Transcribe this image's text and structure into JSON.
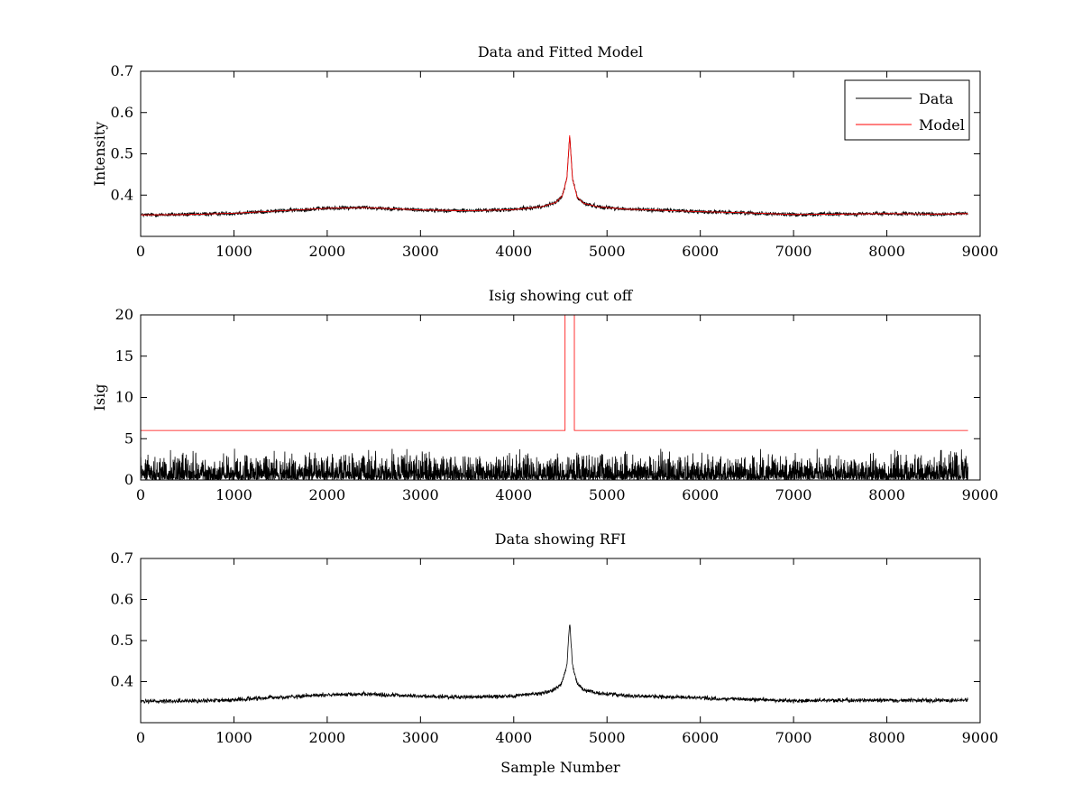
{
  "chart_data": [
    {
      "type": "line",
      "title": "Data and Fitted Model",
      "xlabel": "",
      "ylabel": "Intensity",
      "xlim": [
        0,
        9000
      ],
      "ylim": [
        0.3,
        0.7
      ],
      "xticks": [
        "0",
        "1000",
        "2000",
        "3000",
        "4000",
        "5000",
        "6000",
        "7000",
        "8000",
        "9000"
      ],
      "yticks": [
        "0.4",
        "0.5",
        "0.6",
        "0.7"
      ],
      "legend_position": "top-right",
      "series": [
        {
          "name": "Data",
          "color": "#000000",
          "x": [
            0,
            500,
            1000,
            1500,
            2000,
            2400,
            3000,
            3500,
            4000,
            4300,
            4450,
            4520,
            4570,
            4600,
            4630,
            4680,
            4750,
            4900,
            5200,
            5500,
            6000,
            6500,
            7000,
            7500,
            8000,
            8500,
            8870
          ],
          "values": [
            0.352,
            0.353,
            0.356,
            0.362,
            0.368,
            0.37,
            0.364,
            0.362,
            0.365,
            0.372,
            0.382,
            0.398,
            0.44,
            0.545,
            0.44,
            0.395,
            0.38,
            0.372,
            0.366,
            0.364,
            0.36,
            0.357,
            0.353,
            0.354,
            0.355,
            0.354,
            0.355
          ],
          "noise_amplitude": 0.005
        },
        {
          "name": "Model",
          "color": "#ff0000",
          "x": [
            0,
            500,
            1000,
            1500,
            2000,
            2400,
            3000,
            3500,
            4000,
            4300,
            4450,
            4520,
            4570,
            4600,
            4630,
            4680,
            4750,
            4900,
            5200,
            5500,
            6000,
            6500,
            7000,
            7500,
            8000,
            8500,
            8870
          ],
          "values": [
            0.352,
            0.353,
            0.356,
            0.362,
            0.368,
            0.37,
            0.364,
            0.362,
            0.365,
            0.372,
            0.382,
            0.398,
            0.44,
            0.545,
            0.44,
            0.395,
            0.38,
            0.372,
            0.366,
            0.364,
            0.36,
            0.357,
            0.353,
            0.354,
            0.355,
            0.354,
            0.355
          ]
        }
      ]
    },
    {
      "type": "line",
      "title": "Isig showing cut off",
      "xlabel": "",
      "ylabel": "Isig",
      "xlim": [
        0,
        9000
      ],
      "ylim": [
        0,
        20
      ],
      "xticks": [
        "0",
        "1000",
        "2000",
        "3000",
        "4000",
        "5000",
        "6000",
        "7000",
        "8000",
        "9000"
      ],
      "yticks": [
        "0",
        "5",
        "10",
        "15",
        "20"
      ],
      "series": [
        {
          "name": "Isig",
          "color": "#000000",
          "noise_range": [
            0,
            3.8
          ],
          "x_range": [
            0,
            8870
          ]
        },
        {
          "name": "Cut off",
          "color": "#ff0000",
          "x": [
            0,
            4550,
            4550,
            4650,
            4650,
            8870
          ],
          "values": [
            6,
            6,
            20,
            20,
            6,
            6
          ]
        }
      ]
    },
    {
      "type": "line",
      "title": "Data showing RFI",
      "xlabel": "Sample Number",
      "ylabel": "",
      "xlim": [
        0,
        9000
      ],
      "ylim": [
        0.3,
        0.7
      ],
      "xticks": [
        "0",
        "1000",
        "2000",
        "3000",
        "4000",
        "5000",
        "6000",
        "7000",
        "8000",
        "9000"
      ],
      "yticks": [
        "0.4",
        "0.5",
        "0.6",
        "0.7"
      ],
      "series": [
        {
          "name": "Data",
          "color": "#000000",
          "x": [
            0,
            500,
            1000,
            1500,
            2000,
            2400,
            3000,
            3500,
            4000,
            4300,
            4450,
            4520,
            4570,
            4600,
            4630,
            4680,
            4750,
            4900,
            5200,
            5500,
            6000,
            6500,
            7000,
            7500,
            8000,
            8500,
            8870
          ],
          "values": [
            0.352,
            0.353,
            0.356,
            0.362,
            0.368,
            0.37,
            0.364,
            0.362,
            0.365,
            0.372,
            0.382,
            0.398,
            0.44,
            0.545,
            0.44,
            0.395,
            0.38,
            0.372,
            0.366,
            0.364,
            0.36,
            0.357,
            0.353,
            0.354,
            0.355,
            0.354,
            0.355
          ],
          "noise_amplitude": 0.005
        }
      ]
    }
  ]
}
